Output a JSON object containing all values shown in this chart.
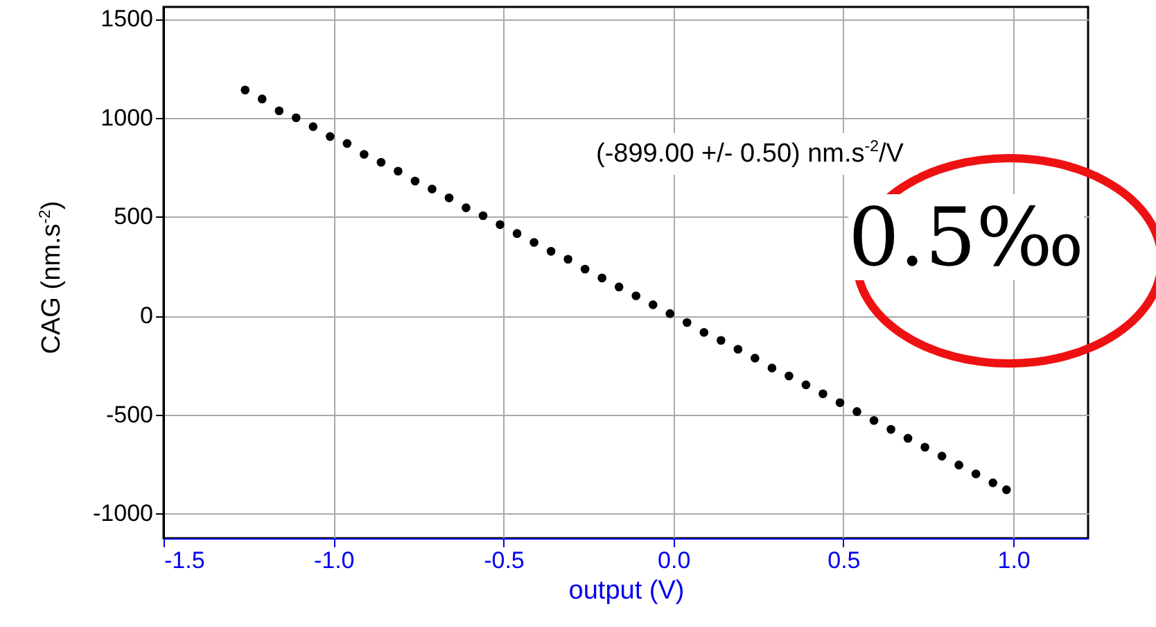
{
  "chart_data": {
    "type": "scatter",
    "xlabel": "output (V)",
    "ylabel": "CAG (nm.s$^{-2}$)",
    "annotations": [
      "(-899.00 +/- 0.50) nm.s$^{-2}$/V",
      "0.5‰"
    ],
    "x": [
      -1.26,
      -1.21,
      -1.16,
      -1.11,
      -1.06,
      -1.01,
      -0.96,
      -0.91,
      -0.86,
      -0.81,
      -0.76,
      -0.71,
      -0.66,
      -0.61,
      -0.56,
      -0.51,
      -0.46,
      -0.41,
      -0.36,
      -0.31,
      -0.26,
      -0.21,
      -0.16,
      -0.11,
      -0.06,
      -0.01,
      0.04,
      0.09,
      0.14,
      0.19,
      0.24,
      0.29,
      0.34,
      0.39,
      0.44,
      0.49,
      0.54,
      0.59,
      0.64,
      0.69,
      0.74,
      0.79,
      0.84,
      0.89,
      0.94,
      0.98
    ],
    "series": [
      {
        "color": "#000000",
        "values": [
          1140,
          1095,
          1035,
          1000,
          955,
          905,
          870,
          815,
          775,
          730,
          680,
          640,
          595,
          545,
          505,
          460,
          415,
          370,
          325,
          285,
          235,
          190,
          145,
          100,
          55,
          10,
          -35,
          -85,
          -125,
          -170,
          -215,
          -265,
          -305,
          -350,
          -395,
          -440,
          -485,
          -530,
          -575,
          -620,
          -665,
          -710,
          -755,
          -800,
          -845,
          -880
        ]
      }
    ],
    "xlim": [
      -1.5,
      1.22
    ],
    "ylim": [
      -1125,
      1560
    ],
    "xticks": [
      {
        "value": -1.5,
        "label": "-1.5"
      },
      {
        "value": -1,
        "label": "-1.0"
      },
      {
        "value": -0.5,
        "label": "-0.5"
      },
      {
        "value": 0,
        "label": "0.0"
      },
      {
        "value": 0.5,
        "label": "0.5"
      },
      {
        "value": 1,
        "label": "1.0"
      }
    ],
    "yticks": [
      -1000,
      -500,
      0,
      500,
      1000,
      1500
    ],
    "grid": true,
    "marker": "circle"
  }
}
